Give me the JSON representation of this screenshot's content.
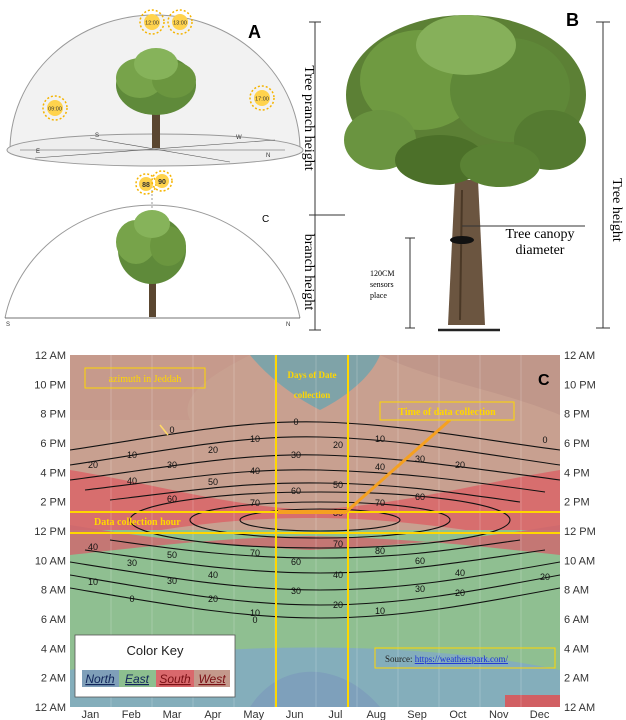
{
  "panel_a": {
    "label": "A",
    "sun_times_top": [
      "12:00",
      "13:00"
    ],
    "sun_left": "09:00",
    "sun_right": "17:00",
    "compass": {
      "s": "S",
      "e": "E",
      "w": "W",
      "n": "N"
    }
  },
  "panel_c_top": {
    "label": "C",
    "sun_angles": [
      "88",
      "90"
    ],
    "compass": {
      "s": "S",
      "n": "N"
    }
  },
  "panel_b": {
    "label": "B",
    "tree_branch_height": "Tree pranch height",
    "branch_height": "branch height",
    "sensors_place": [
      "120CM",
      "sensors",
      "place"
    ],
    "canopy_diameter": [
      "Tree canopy",
      "diameter"
    ],
    "tree_height": "Tree height"
  },
  "chart_data": {
    "type": "heatmap",
    "label": "C",
    "y_ticks": [
      "12 AM",
      "10 PM",
      "8 PM",
      "6 PM",
      "4 PM",
      "2 PM",
      "12 PM",
      "10 AM",
      "8 AM",
      "6 AM",
      "4 AM",
      "2 AM",
      "12 AM"
    ],
    "x_ticks": [
      "Jan",
      "Feb",
      "Mar",
      "Apr",
      "May",
      "Jun",
      "Jul",
      "Aug",
      "Sep",
      "Oct",
      "Nov",
      "Dec"
    ],
    "contour_levels": [
      "0",
      "10",
      "20",
      "30",
      "40",
      "50",
      "60",
      "70",
      "80"
    ],
    "annotations": {
      "azimuth": "azimuth in Jeddah",
      "days_of_collection": [
        "Days of Date",
        "collection"
      ],
      "time_of_collection": "Time of data collection",
      "data_collection_hour": "Data collection hour",
      "source_prefix": "Source: ",
      "source_url": "https://weatherspark.com/"
    },
    "color_key": {
      "title": "Color Key",
      "north": "North",
      "east": "East",
      "south": "South",
      "west": "West"
    },
    "colors": {
      "north": "#7f9fb9",
      "east": "#8dbf8f",
      "south": "#d9686c",
      "west": "#c4998c",
      "highlight": "#ffd700"
    }
  }
}
